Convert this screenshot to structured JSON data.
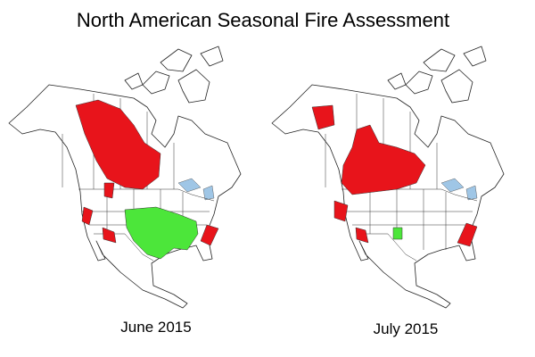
{
  "title": "North American Seasonal Fire Assessment",
  "maps": [
    {
      "label": "June 2015"
    },
    {
      "label": "July 2015"
    }
  ]
}
